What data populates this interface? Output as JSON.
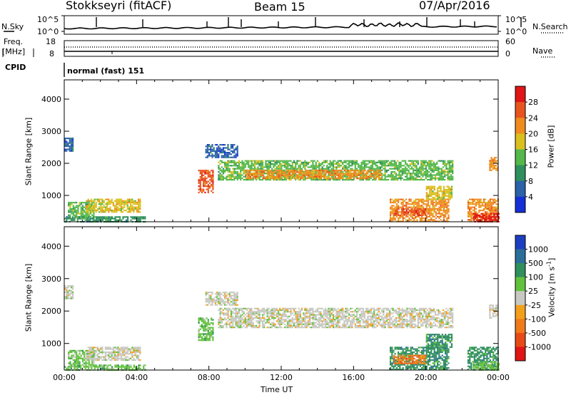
{
  "header": {
    "station": "Stokkseyri (fitACF)",
    "beam": "Beam 15",
    "date": "07/Apr/2016"
  },
  "left_labels": {
    "nsky": "N.Sky",
    "freq": "Freq.",
    "freq_unit": "[MHz]",
    "cpid": "CPID"
  },
  "right_labels": {
    "nsearch": "N.Search",
    "nave": "Nave"
  },
  "cpid_text": "normal (fast) 151",
  "noise_panel": {
    "left_ticks": [
      "10^5",
      "10^0"
    ],
    "right_ticks": [
      "10^5",
      "10^0"
    ]
  },
  "freq_panel": {
    "left_ticks": [
      "18",
      "8"
    ],
    "right_ticks": [
      "60",
      "0"
    ]
  },
  "colors": {
    "power_scale": [
      "#1530d6",
      "#2b62a8",
      "#2f8f5d",
      "#54b84a",
      "#d9c01f",
      "#f08b1e",
      "#e8541f",
      "#e01515"
    ],
    "velocity_scale": [
      "#1c3fc2",
      "#2c6e9a",
      "#2f8f5d",
      "#63c23d",
      "#c9c9c3",
      "#f2a01c",
      "#f07a1a",
      "#e84a16",
      "#e01515"
    ]
  },
  "chart_data": [
    {
      "type": "heatmap",
      "title": "",
      "ylabel": "Slant Range [km]",
      "xlabel": "",
      "ylim": [
        180,
        4600
      ],
      "y_ticks": [
        "1000",
        "2000",
        "3000",
        "4000"
      ],
      "x_ticks": [
        "00:00",
        "04:00",
        "08:00",
        "12:00",
        "16:00",
        "20:00",
        "00:00"
      ],
      "colorbar": {
        "label": "Power [dB]",
        "ticks": [
          "4",
          "8",
          "12",
          "16",
          "20",
          "24",
          "28"
        ]
      },
      "regions": [
        {
          "t0": 0.0,
          "t1": 0.5,
          "r0": 2400,
          "r1": 2800,
          "level": 1
        },
        {
          "t0": 0.2,
          "t1": 1.6,
          "r0": 300,
          "r1": 800,
          "level": 3
        },
        {
          "t0": 1.2,
          "t1": 4.2,
          "r0": 500,
          "r1": 900,
          "level": 4
        },
        {
          "t0": 0.0,
          "t1": 4.5,
          "r0": 200,
          "r1": 350,
          "level": 2
        },
        {
          "t0": 7.4,
          "t1": 8.2,
          "r0": 1100,
          "r1": 1800,
          "level": 6
        },
        {
          "t0": 7.8,
          "t1": 9.6,
          "r0": 2200,
          "r1": 2600,
          "level": 1
        },
        {
          "t0": 8.5,
          "t1": 21.5,
          "r0": 1500,
          "r1": 2100,
          "level": 3
        },
        {
          "t0": 10.0,
          "t1": 17.5,
          "r0": 1550,
          "r1": 1800,
          "level": 5
        },
        {
          "t0": 18.0,
          "t1": 21.3,
          "r0": 200,
          "r1": 900,
          "level": 5
        },
        {
          "t0": 18.2,
          "t1": 20.0,
          "r0": 400,
          "r1": 600,
          "level": 6
        },
        {
          "t0": 20.0,
          "t1": 21.4,
          "r0": 900,
          "r1": 1300,
          "level": 4
        },
        {
          "t0": 22.3,
          "t1": 24.0,
          "r0": 200,
          "r1": 900,
          "level": 5
        },
        {
          "t0": 22.6,
          "t1": 24.0,
          "r0": 200,
          "r1": 450,
          "level": 7
        },
        {
          "t0": 23.5,
          "t1": 24.0,
          "r0": 1800,
          "r1": 2200,
          "level": 5
        }
      ]
    },
    {
      "type": "heatmap",
      "title": "",
      "ylabel": "Slant Range [km]",
      "xlabel": "Time UT",
      "ylim": [
        180,
        4600
      ],
      "y_ticks": [
        "1000",
        "2000",
        "3000",
        "4000"
      ],
      "x_ticks": [
        "00:00",
        "04:00",
        "08:00",
        "12:00",
        "16:00",
        "20:00",
        "00:00"
      ],
      "colorbar": {
        "label": "Velocity [m s-1]",
        "ticks": [
          "1000",
          "500",
          "100",
          "25",
          "-25",
          "-100",
          "-500",
          "-1000"
        ]
      },
      "regions": [
        {
          "t0": 0.0,
          "t1": 0.5,
          "r0": 2400,
          "r1": 2800,
          "level": 4
        },
        {
          "t0": 0.2,
          "t1": 1.6,
          "r0": 300,
          "r1": 800,
          "level": 3
        },
        {
          "t0": 1.2,
          "t1": 4.2,
          "r0": 500,
          "r1": 900,
          "level": 4
        },
        {
          "t0": 0.0,
          "t1": 4.5,
          "r0": 200,
          "r1": 350,
          "level": 3
        },
        {
          "t0": 7.4,
          "t1": 8.2,
          "r0": 1100,
          "r1": 1800,
          "level": 3
        },
        {
          "t0": 7.8,
          "t1": 9.6,
          "r0": 2200,
          "r1": 2600,
          "level": 4
        },
        {
          "t0": 8.5,
          "t1": 21.5,
          "r0": 1500,
          "r1": 2100,
          "level": 4
        },
        {
          "t0": 18.0,
          "t1": 21.3,
          "r0": 200,
          "r1": 900,
          "level": 2
        },
        {
          "t0": 18.2,
          "t1": 20.0,
          "r0": 400,
          "r1": 650,
          "level": 6
        },
        {
          "t0": 20.0,
          "t1": 21.4,
          "r0": 900,
          "r1": 1300,
          "level": 2
        },
        {
          "t0": 22.3,
          "t1": 24.0,
          "r0": 200,
          "r1": 900,
          "level": 2
        },
        {
          "t0": 22.6,
          "t1": 24.0,
          "r0": 200,
          "r1": 450,
          "level": 3
        },
        {
          "t0": 23.5,
          "t1": 24.0,
          "r0": 1800,
          "r1": 2200,
          "level": 4
        }
      ]
    }
  ]
}
